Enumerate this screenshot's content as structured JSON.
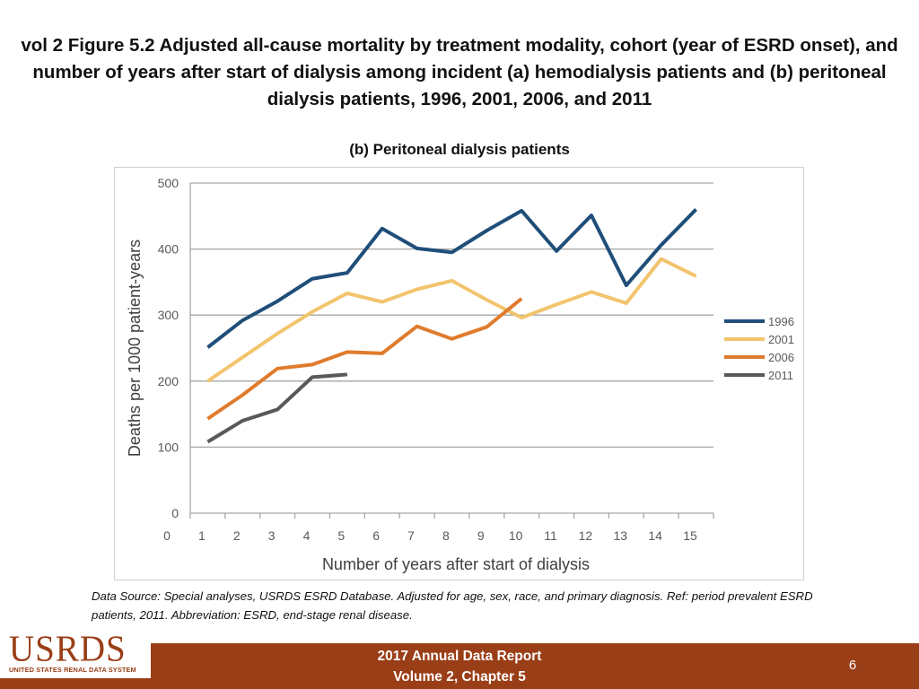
{
  "slide": {
    "title": "vol 2 Figure 5.2 Adjusted all-cause mortality by treatment modality, cohort (year of ESRD onset), and number of years after start of dialysis among incident (a) hemodialysis patients and (b) peritoneal dialysis patients, 1996, 2001, 2006, and 2011",
    "source_note": "Data Source: Special analyses, USRDS ESRD Database. Adjusted for age, sex, race, and primary diagnosis. Ref: period prevalent ESRD patients, 2011. Abbreviation: ESRD, end-stage renal disease.",
    "footer_line1": "2017 Annual Data Report",
    "footer_line2": "Volume 2, Chapter 5",
    "page_number": "6",
    "logo_text": "USRDS",
    "logo_subtext": "UNITED STATES RENAL DATA SYSTEM",
    "colors": {
      "footer": "#9a3e17",
      "logo": "#9a3e17"
    }
  },
  "chart_data": {
    "type": "line",
    "title": "(b) Peritoneal dialysis patients",
    "xlabel": "Number of years after start of dialysis",
    "ylabel": "Deaths per 1000 patient-years",
    "xlim": [
      0,
      15
    ],
    "ylim": [
      0,
      500
    ],
    "x_ticks": [
      "0",
      "1",
      "2",
      "3",
      "4",
      "5",
      "6",
      "7",
      "8",
      "9",
      "10",
      "11",
      "12",
      "13",
      "14",
      "15"
    ],
    "y_ticks": [
      "0",
      "100",
      "200",
      "300",
      "400",
      "500"
    ],
    "grid": "horizontal",
    "legend_position": "right",
    "series": [
      {
        "name": "1996",
        "color": "#1f4e79",
        "x": [
          0.5,
          1.5,
          2.5,
          3.5,
          4.5,
          5.5,
          6.5,
          7.5,
          8.5,
          9.5,
          10.5,
          11.5,
          12.5,
          13.5,
          14.5
        ],
        "y": [
          251,
          292,
          321,
          355,
          364,
          431,
          401,
          395,
          428,
          458,
          397,
          451,
          345,
          406,
          460
        ]
      },
      {
        "name": "2001",
        "color": "#f2c46d",
        "x": [
          0.5,
          1.5,
          2.5,
          3.5,
          4.5,
          5.5,
          6.5,
          7.5,
          8.5,
          9.5,
          10.5,
          11.5,
          12.5,
          13.5,
          14.5
        ],
        "y": [
          200,
          236,
          272,
          305,
          333,
          320,
          339,
          352,
          323,
          296,
          316,
          335,
          318,
          385,
          359
        ]
      },
      {
        "name": "2006",
        "color": "#e07b2c",
        "x": [
          0.5,
          1.5,
          2.5,
          3.5,
          4.5,
          5.5,
          6.5,
          7.5,
          8.5,
          9.5
        ],
        "y": [
          143,
          179,
          219,
          225,
          244,
          242,
          283,
          264,
          282,
          325
        ]
      },
      {
        "name": "2011",
        "color": "#595959",
        "x": [
          0.5,
          1.5,
          2.5,
          3.5,
          4.5
        ],
        "y": [
          108,
          140,
          157,
          206,
          210
        ]
      }
    ]
  }
}
